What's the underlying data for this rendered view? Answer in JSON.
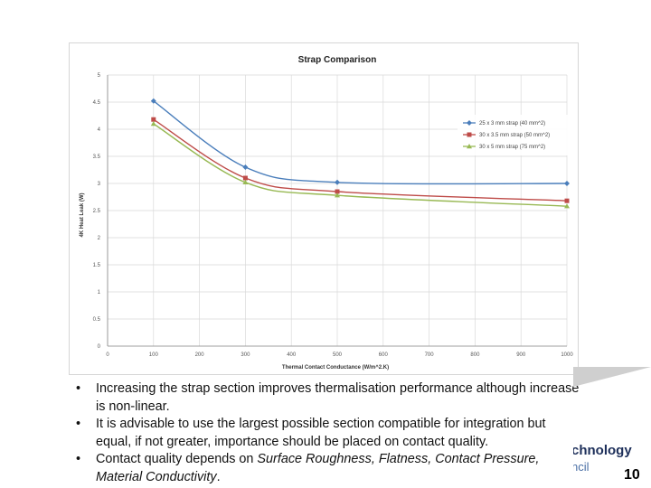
{
  "chart_data": {
    "type": "line",
    "title": "Strap Comparison",
    "xlabel": "Thermal Contact Conductance (W/m^2.K)",
    "ylabel": "4K Heat Leak (W)",
    "x": [
      100,
      300,
      500,
      1000
    ],
    "xticks": [
      "0",
      "100",
      "200",
      "300",
      "400",
      "500",
      "600",
      "700",
      "800",
      "900",
      "1000"
    ],
    "xlim": [
      0,
      1000
    ],
    "yticks": [
      "0",
      "0.5",
      "1",
      "1.5",
      "2",
      "2.5",
      "3",
      "3.5",
      "4",
      "4.5",
      "5"
    ],
    "ylim": [
      0,
      5
    ],
    "grid": true,
    "legend_position": "right",
    "series": [
      {
        "name": "25 x 3 mm strap (40 mm^2)",
        "color": "#4a7ebb",
        "marker": "diamond",
        "values": [
          4.52,
          3.3,
          3.02,
          3.0
        ]
      },
      {
        "name": "30 x 3.5 mm strap (50 mm^2)",
        "color": "#be4b48",
        "marker": "square",
        "values": [
          4.18,
          3.1,
          2.85,
          2.68
        ]
      },
      {
        "name": "30 x 5 mm strap (75 mm^2)",
        "color": "#98b954",
        "marker": "triangle",
        "values": [
          4.1,
          3.02,
          2.78,
          2.58
        ]
      }
    ]
  },
  "bullets": [
    {
      "dot": "•",
      "text": "Increasing the strap section improves thermalisation performance although increase is non-linear."
    },
    {
      "dot": "•",
      "text": "It is advisable to use the largest possible section compatible for integration but equal, if not greater, importance should be placed on contact quality."
    },
    {
      "dot": "•",
      "pre": "Contact quality depends on ",
      "em": "Surface Roughness, Flatness, Contact Pressure, Material Conductivity",
      "post": "."
    }
  ],
  "brand": {
    "line1": "chnology",
    "line2": "ncil"
  },
  "page_number": "10"
}
